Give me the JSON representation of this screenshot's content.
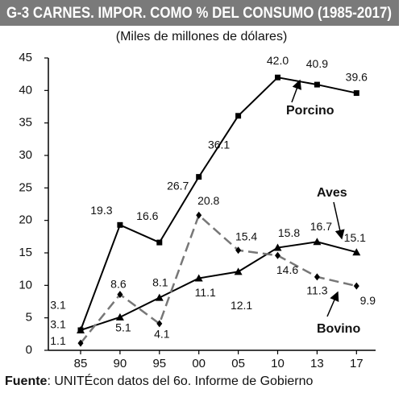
{
  "chart_data": {
    "type": "line",
    "title": "G-3 CARNES. IMPOR. COMO % DEL CONSUMO (1985-2017)",
    "subtitle": "(Miles de millones de dólares)",
    "categories": [
      "85",
      "90",
      "95",
      "00",
      "05",
      "10",
      "13",
      "17"
    ],
    "series": [
      {
        "name": "Porcino",
        "color": "#000000",
        "marker": "square",
        "dashed": false,
        "values": [
          3.1,
          19.3,
          16.6,
          26.7,
          36.1,
          42.0,
          40.9,
          39.6
        ],
        "value_labels": [
          "3.1",
          "19.3",
          "16.6",
          "26.7",
          "36.1",
          "42.0",
          "40.9",
          "39.6"
        ]
      },
      {
        "name": "Aves",
        "color": "#000000",
        "marker": "triangle",
        "dashed": false,
        "values": [
          3.1,
          5.1,
          8.1,
          11.1,
          12.1,
          15.8,
          16.7,
          15.1
        ],
        "value_labels": [
          "3.1",
          "5.1",
          "8.1",
          "11.1",
          "12.1",
          "15.8",
          "16.7",
          "15.1"
        ]
      },
      {
        "name": "Bovino",
        "color": "#777777",
        "marker": "diamond",
        "dashed": true,
        "values": [
          1.1,
          8.6,
          4.1,
          20.8,
          15.4,
          14.6,
          11.3,
          9.9
        ],
        "value_labels": [
          "1.1",
          "8.6",
          "4.1",
          "20.8",
          "15.4",
          "14.6",
          "11.3",
          "9.9"
        ]
      }
    ],
    "ylim": [
      0,
      45
    ],
    "yticks": [
      0,
      5,
      10,
      15,
      20,
      25,
      30,
      35,
      40,
      45
    ],
    "grid": false,
    "source_label": "Fuente",
    "source_text": ": UNITÉcon datos del 6o. Informe de Gobierno"
  }
}
